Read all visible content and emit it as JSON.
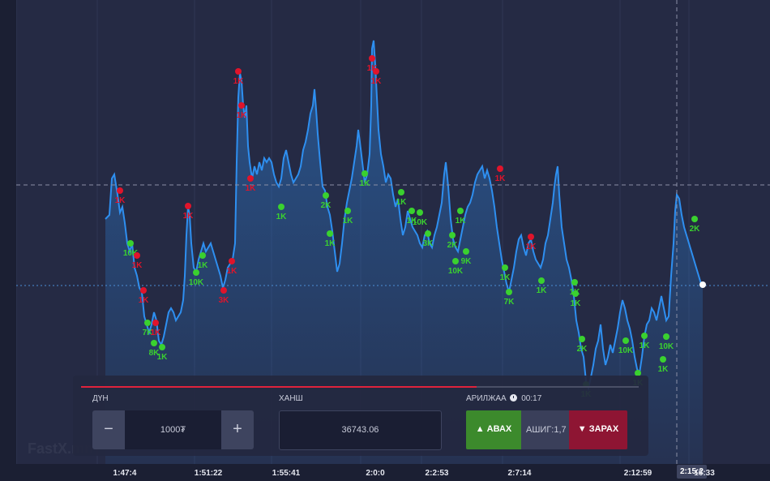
{
  "trade_panel": {
    "amount_label": "ДҮН",
    "amount_value": "1000₮",
    "minus_label": "−",
    "plus_label": "+",
    "price_label": "ХАНШ",
    "price_value": "36743.06",
    "trade_label": "АРИЛЖАА",
    "timer": "00:17",
    "buy_label": "▲ АВАХ",
    "payout_label": "АШИГ:1,7",
    "sell_label": "▼ ЗАРАХ",
    "progress": 0.71
  },
  "time_axis": {
    "labels": [
      "1:47:4",
      "1:51:22",
      "1:55:41",
      "2:0:0",
      "2:2:53",
      "2:7:14",
      "2:12:59",
      "16:33"
    ],
    "cursor_label": "2:15:2"
  },
  "colors": {
    "line": "#2e8ff0",
    "buy_marker": "#3ad12f",
    "sell_marker": "#e0142b",
    "background": "#252a44"
  },
  "watermark": "FastX.mn",
  "chart_data": {
    "type": "line",
    "buy_markers": [
      "10K",
      "7K",
      "8K",
      "1K",
      "10K",
      "1K",
      "1K",
      "2K",
      "1K",
      "1K",
      "1K",
      "1K",
      "1K",
      "10K",
      "3K",
      "2K",
      "10K",
      "9K",
      "1K",
      "1K",
      "7K",
      "1K",
      "1K",
      "1K",
      "2K",
      "1K",
      "10K",
      "1K",
      "10K",
      "1K",
      "1K",
      "2K"
    ],
    "sell_markers": [
      "1K",
      "1K",
      "1K",
      "1K",
      "1K",
      "3K",
      "1K",
      "1K",
      "1K",
      "1K",
      "1K",
      "1K",
      "1K",
      "1K"
    ]
  }
}
